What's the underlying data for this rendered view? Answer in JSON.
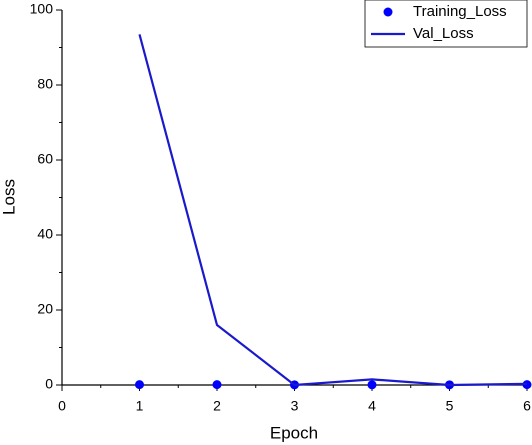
{
  "chart_data": {
    "type": "line",
    "xlabel": "Epoch",
    "ylabel": "Loss",
    "xlim": [
      0,
      6
    ],
    "xticks": [
      0,
      1,
      2,
      3,
      4,
      5,
      6
    ],
    "ylim": [
      0,
      100
    ],
    "yticks": [
      0,
      20,
      40,
      60,
      80,
      100
    ],
    "legend": "upper right",
    "x": [
      1,
      2,
      3,
      4,
      5,
      6
    ],
    "series": [
      {
        "name": "Training_Loss",
        "style": "markers",
        "color": "#0000ff",
        "values": [
          0.1,
          0.1,
          0.05,
          0.05,
          0.05,
          0.1
        ]
      },
      {
        "name": "Val_Loss",
        "style": "line",
        "color": "#1a1acc",
        "values": [
          93.5,
          16,
          0,
          1.5,
          0,
          0.3
        ]
      }
    ]
  }
}
